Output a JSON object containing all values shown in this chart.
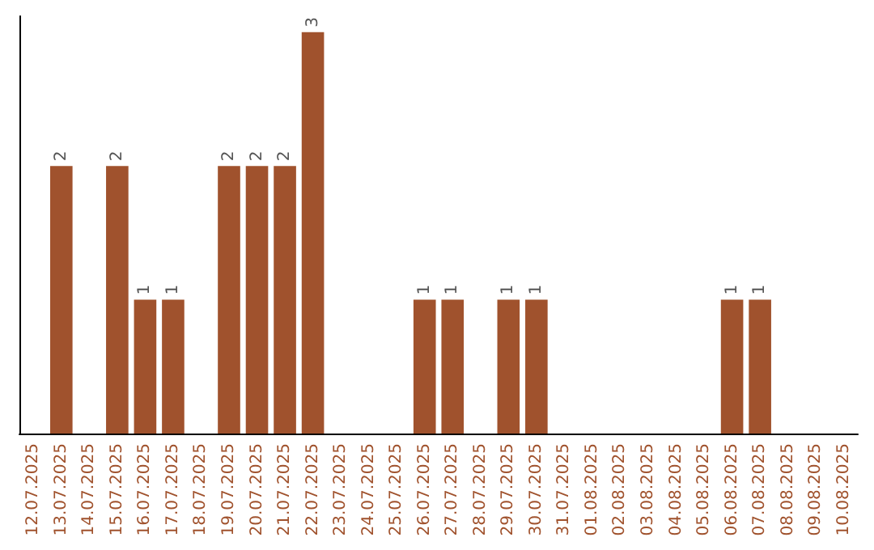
{
  "chart_data": {
    "type": "bar",
    "categories": [
      "12.07.2025",
      "13.07.2025",
      "14.07.2025",
      "15.07.2025",
      "16.07.2025",
      "17.07.2025",
      "18.07.2025",
      "19.07.2025",
      "20.07.2025",
      "21.07.2025",
      "22.07.2025",
      "23.07.2025",
      "24.07.2025",
      "25.07.2025",
      "26.07.2025",
      "27.07.2025",
      "28.07.2025",
      "29.07.2025",
      "30.07.2025",
      "31.07.2025",
      "01.08.2025",
      "02.08.2025",
      "03.08.2025",
      "04.08.2025",
      "05.08.2025",
      "06.08.2025",
      "07.08.2025",
      "08.08.2025",
      "09.08.2025",
      "10.08.2025"
    ],
    "values": [
      0,
      2,
      0,
      2,
      1,
      1,
      0,
      2,
      2,
      2,
      3,
      0,
      0,
      0,
      1,
      1,
      0,
      1,
      1,
      0,
      0,
      0,
      0,
      0,
      0,
      1,
      1,
      0,
      0,
      0
    ],
    "value_labels": [
      null,
      "2",
      null,
      "2",
      "1",
      "1",
      null,
      "2",
      "2",
      "2",
      "3",
      null,
      null,
      null,
      "1",
      "1",
      null,
      "1",
      "1",
      null,
      null,
      null,
      null,
      null,
      null,
      "1",
      "1",
      null,
      null,
      null
    ],
    "color": "#a0522d"
  }
}
